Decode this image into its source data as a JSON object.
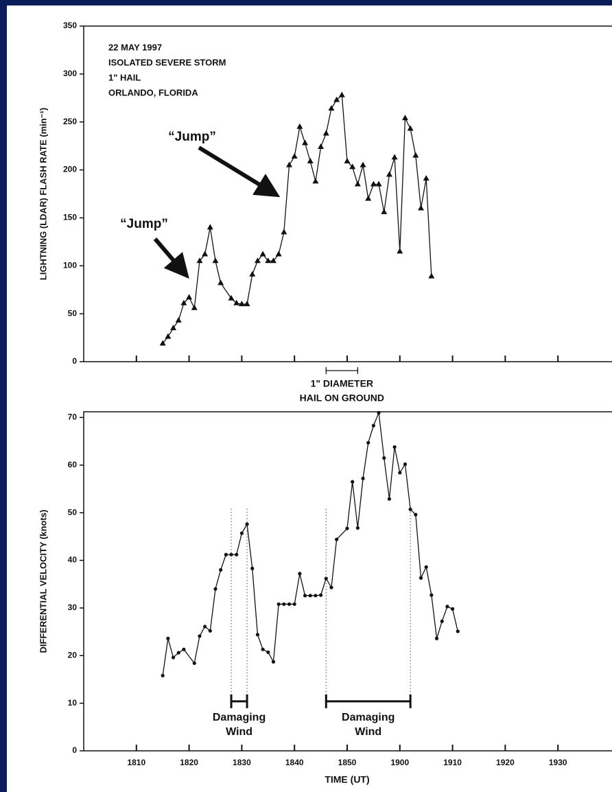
{
  "chart_data": [
    {
      "type": "line",
      "marker": "triangle",
      "color": "#111111",
      "y_label": "LIGHTNING (LDAR) FLASH RATE (min⁻¹)",
      "notes": [
        "22 MAY 1997",
        "ISOLATED SEVERE STORM",
        "1\" HAIL",
        "ORLANDO, FLORIDA"
      ],
      "jumps": [
        "“Jump”",
        "“Jump”"
      ],
      "hail": {
        "label": [
          "1\" DIAMETER",
          "HAIL ON GROUND"
        ],
        "start": 1126,
        "end": 1132
      },
      "xlim": [
        1080,
        1180
      ],
      "xticks": [
        1090,
        1100,
        1110,
        1120,
        1130,
        1140,
        1150,
        1160,
        1170
      ],
      "ylim": [
        0,
        350
      ],
      "yticks": [
        0,
        50,
        100,
        150,
        200,
        250,
        300,
        350
      ],
      "x": [
        1095,
        1096,
        1097,
        1098,
        1099,
        1100,
        1101,
        1102,
        1103,
        1104,
        1105,
        1106,
        1108,
        1109,
        1110,
        1111,
        1112,
        1113,
        1114,
        1115,
        1116,
        1117,
        1118,
        1119,
        1120,
        1121,
        1122,
        1123,
        1124,
        1125,
        1126,
        1127,
        1128,
        1129,
        1130,
        1131,
        1132,
        1133,
        1134,
        1135,
        1136,
        1137,
        1138,
        1139,
        1140,
        1141,
        1142,
        1143,
        1144,
        1145,
        1146
      ],
      "values": [
        19,
        26,
        35,
        43,
        61,
        67,
        56,
        105,
        112,
        140,
        105,
        82,
        66,
        61,
        60,
        60,
        91,
        105,
        112,
        105,
        105,
        112,
        135,
        205,
        214,
        245,
        228,
        209,
        188,
        224,
        238,
        264,
        273,
        278,
        209,
        203,
        185,
        205,
        170,
        185,
        185,
        156,
        195,
        213,
        115,
        254,
        243,
        215,
        160,
        191,
        89
      ]
    },
    {
      "type": "line",
      "marker": "circle",
      "color": "#111111",
      "y_label": "DIFFERENTIAL VELOCITY (knots)",
      "x_label": "TIME (UT)",
      "wind": [
        {
          "label": [
            "Damaging",
            "Wind"
          ],
          "start": 1108,
          "end": 1111,
          "level": 10.4
        },
        {
          "label": [
            "Damaging",
            "Wind"
          ],
          "start": 1126,
          "end": 1142,
          "level": 10.4
        }
      ],
      "xlim": [
        1080,
        1180
      ],
      "xticks": [
        {
          "value": 1090,
          "label": "1810"
        },
        {
          "value": 1100,
          "label": "1820"
        },
        {
          "value": 1110,
          "label": "1830"
        },
        {
          "value": 1120,
          "label": "1840"
        },
        {
          "value": 1130,
          "label": "1850"
        },
        {
          "value": 1140,
          "label": "1900"
        },
        {
          "value": 1150,
          "label": "1910"
        },
        {
          "value": 1160,
          "label": "1920"
        },
        {
          "value": 1170,
          "label": "1930"
        }
      ],
      "ylim": [
        0,
        71.2
      ],
      "yticks": [
        0,
        10,
        20,
        30,
        40,
        50,
        60,
        70
      ],
      "x": [
        1095,
        1096,
        1097,
        1098,
        1099,
        1101,
        1102,
        1103,
        1104,
        1105,
        1106,
        1107,
        1108,
        1109,
        1110,
        1111,
        1112,
        1113,
        1114,
        1115,
        1116,
        1117,
        1118,
        1119,
        1120,
        1121,
        1122,
        1123,
        1124,
        1125,
        1126,
        1127,
        1128,
        1130,
        1131,
        1132,
        1133,
        1134,
        1135,
        1136,
        1137,
        1138,
        1139,
        1140,
        1141,
        1142,
        1143,
        1144,
        1145,
        1146,
        1147,
        1148,
        1149,
        1150,
        1151
      ],
      "values": [
        15.8,
        23.6,
        19.6,
        20.6,
        21.3,
        18.4,
        24.1,
        26.1,
        25.2,
        34.0,
        38.0,
        41.2,
        41.2,
        41.2,
        45.7,
        47.6,
        38.3,
        24.4,
        21.3,
        20.7,
        18.7,
        30.8,
        30.8,
        30.8,
        30.8,
        37.2,
        32.6,
        32.6,
        32.6,
        32.7,
        36.2,
        34.3,
        44.4,
        46.7,
        56.5,
        46.8,
        57.2,
        64.7,
        68.3,
        71.0,
        61.5,
        52.9,
        63.8,
        58.4,
        60.2,
        50.7,
        49.6,
        36.3,
        38.6,
        32.7,
        23.6,
        27.2,
        30.3,
        29.8,
        25.1
      ]
    }
  ]
}
